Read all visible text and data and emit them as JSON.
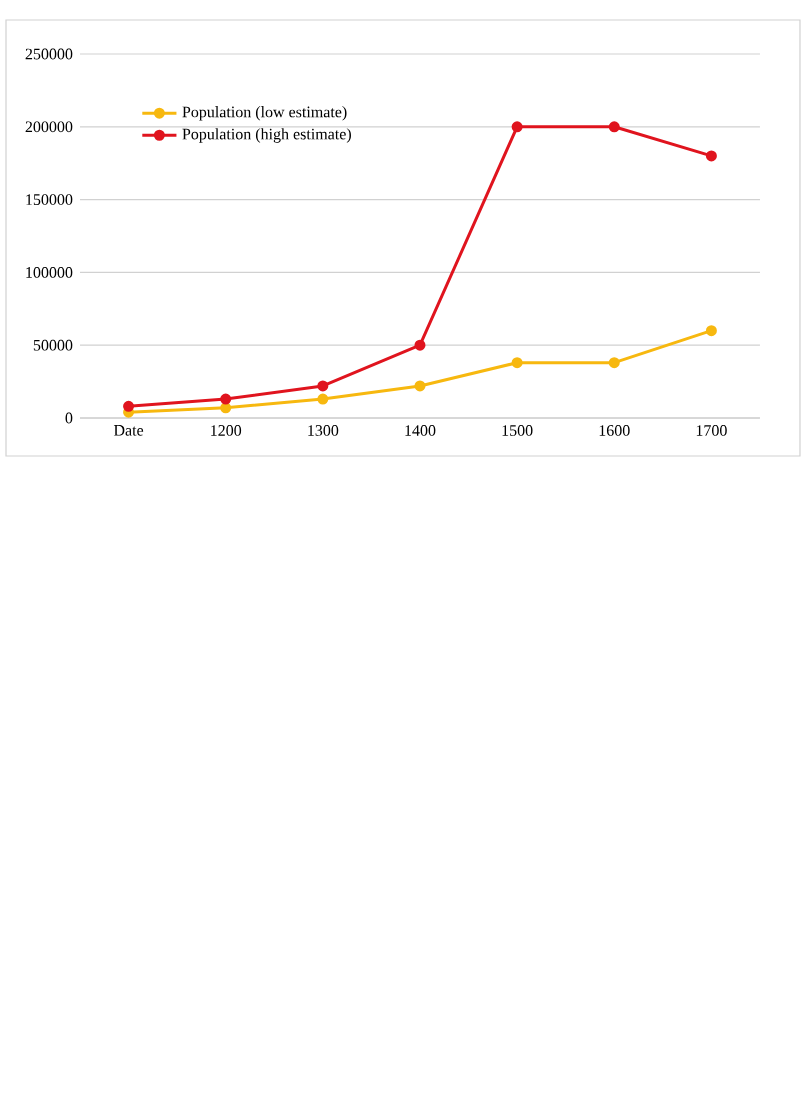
{
  "chart_data": {
    "type": "line",
    "categories": [
      "Date",
      "1200",
      "1300",
      "1400",
      "1500",
      "1600",
      "1700"
    ],
    "series": [
      {
        "name": "Population (low estimate)",
        "color": "#f7b80f",
        "values": [
          4000,
          7000,
          13000,
          22000,
          38000,
          38000,
          60000
        ]
      },
      {
        "name": "Population (high estimate)",
        "color": "#e0141e",
        "values": [
          8000,
          13000,
          22000,
          50000,
          200000,
          200000,
          180000
        ]
      }
    ],
    "ylim": [
      0,
      250000
    ],
    "yticks": [
      0,
      50000,
      100000,
      150000,
      200000,
      250000
    ],
    "grid": "y",
    "legend": "top left",
    "marker": "circle",
    "line_style": "solid"
  }
}
